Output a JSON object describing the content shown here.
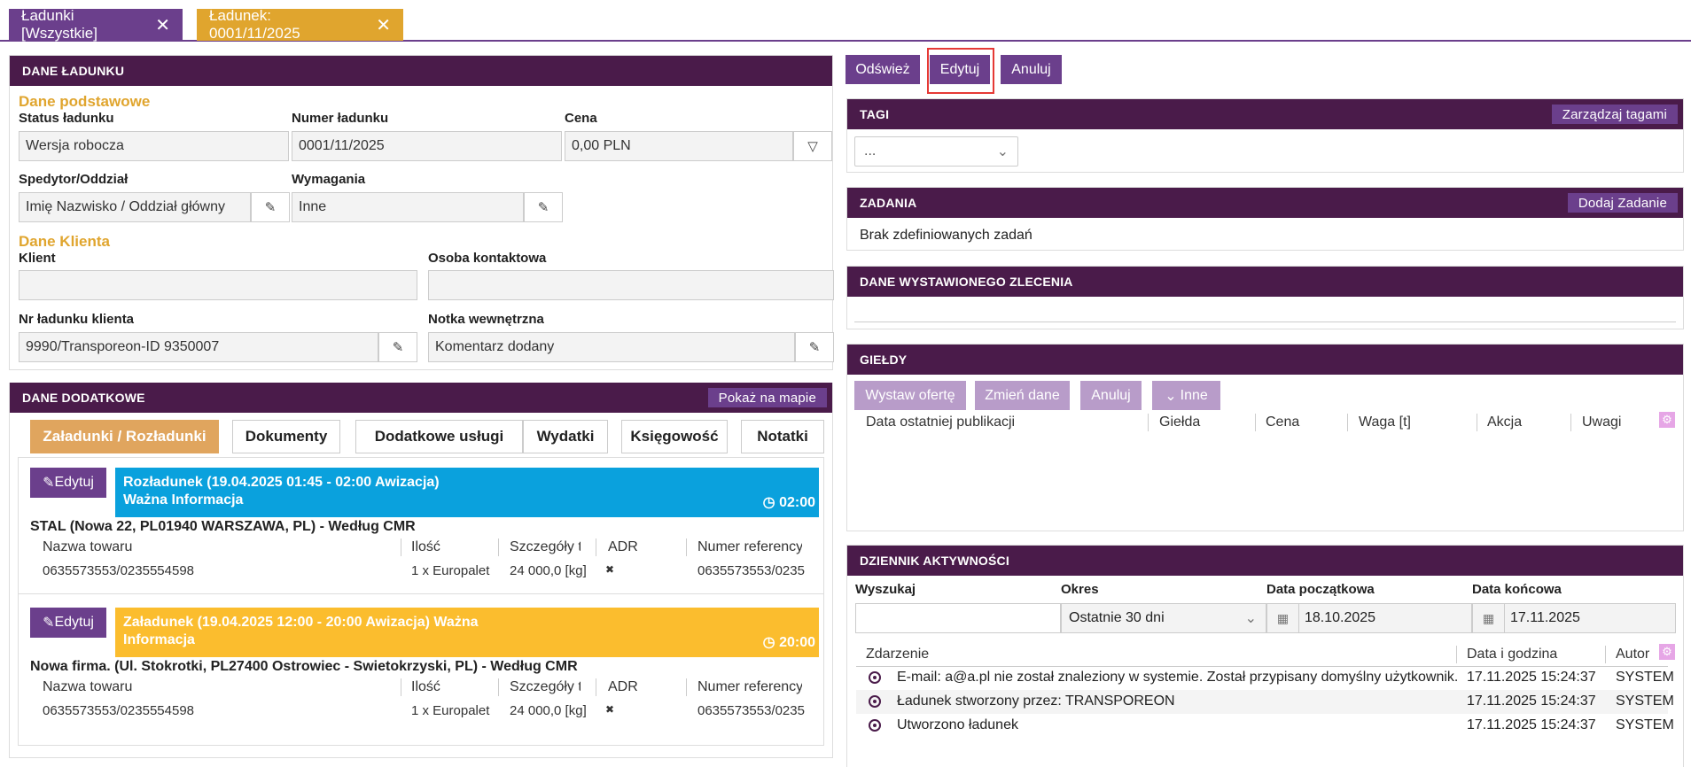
{
  "tabs": [
    {
      "label": "Ładunki [Wszystkie]",
      "close": "✕"
    },
    {
      "label": "Ładunek: 0001/11/2025",
      "close": "✕"
    }
  ],
  "dane_ladunku": {
    "title": "DANE ŁADUNKU",
    "section_basic": "Dane podstawowe",
    "status_label": "Status ładunku",
    "status_value": "Wersja robocza",
    "numer_label": "Numer ładunku",
    "numer_value": "0001/11/2025",
    "cena_label": "Cena",
    "cena_value": "0,00 PLN",
    "spedytor_label": "Spedytor/Oddział",
    "spedytor_value": "Imię Nazwisko / Oddział główny",
    "wymagania_label": "Wymagania",
    "wymagania_value": "Inne",
    "section_client": "Dane Klienta",
    "klient_label": "Klient",
    "klient_value": "",
    "osoba_label": "Osoba kontaktowa",
    "osoba_value": "",
    "nr_klienta_label": "Nr ładunku klienta",
    "nr_klienta_value": "9990/Transporeon-ID 9350007",
    "notka_label": "Notka wewnętrzna",
    "notka_value": "Komentarz dodany"
  },
  "dane_dodatkowe": {
    "title": "DANE DODATKOWE",
    "map_button": "Pokaż na mapie",
    "subtabs": [
      "Załadunki / Rozładunki",
      "Dokumenty",
      "Dodatkowe usługi",
      "Wydatki",
      "Księgowość",
      "Notatki"
    ],
    "stops": [
      {
        "edit": "Edytuj",
        "band_line1": "Rozładunek (19.04.2025 01:45 - 02:00 Awizacja)",
        "band_line2": "Ważna Informacja",
        "time": "◷ 02:00",
        "address": "STAL (Nowa 22, PL01940 WARSZAWA, PL) - Według CMR",
        "headers": [
          "Nazwa towaru",
          "Ilość",
          "Szczegóły tov",
          "ADR",
          "Numer referency"
        ],
        "values": [
          "0635573553/0235554598",
          "1 x Europalet",
          "24 000,0 [kg]",
          "✖",
          "0635573553/0235"
        ]
      },
      {
        "edit": "Edytuj",
        "band_line1": "Załadunek (19.04.2025 12:00 - 20:00 Awizacja) Ważna",
        "band_line2": "Informacja",
        "time": "◷ 20:00",
        "address": "Nowa firma. (Ul. Stokrotki, PL27400 Ostrowiec - Swietokrzyski, PL) - Według CMR",
        "headers": [
          "Nazwa towaru",
          "Ilość",
          "Szczegóły tov",
          "ADR",
          "Numer referency"
        ],
        "values": [
          "0635573553/0235554598",
          "1 x Europalet",
          "24 000,0 [kg]",
          "✖",
          "0635573553/0235"
        ]
      }
    ]
  },
  "actions": {
    "refresh": "Odśwież",
    "edit": "Edytuj",
    "cancel": "Anuluj"
  },
  "tagi": {
    "title": "TAGI",
    "button": "Zarządzaj tagami",
    "select_value": "..."
  },
  "zadania": {
    "title": "ZADANIA",
    "button": "Dodaj Zadanie",
    "empty": "Brak zdefiniowanych zadań"
  },
  "zlecenie": {
    "title": "DANE WYSTAWIONEGO ZLECENIA"
  },
  "gieldy": {
    "title": "GIEŁDY",
    "buttons": [
      "Wystaw ofertę",
      "Zmień dane",
      "Anuluj",
      "Inne"
    ],
    "columns": [
      "Data ostatniej publikacji",
      "Giełda",
      "Cena",
      "Waga [t]",
      "Akcja",
      "Uwagi"
    ]
  },
  "dziennik": {
    "title": "DZIENNIK AKTYWNOŚCI",
    "search_label": "Wyszukaj",
    "search_value": "",
    "okres_label": "Okres",
    "okres_value": "Ostatnie 30 dni",
    "start_label": "Data początkowa",
    "start_value": "18.10.2025",
    "end_label": "Data końcowa",
    "end_value": "17.11.2025",
    "columns": [
      "Zdarzenie",
      "Data i godzina",
      "Autor"
    ],
    "rows": [
      {
        "event": "E-mail: a@a.pl nie został znaleziony w systemie. Został przypisany domyślny użytkownik.",
        "date": "17.11.2025 15:24:37",
        "author": "SYSTEM"
      },
      {
        "event": "Ładunek stworzony przez: TRANSPOREON",
        "date": "17.11.2025 15:24:37",
        "author": "SYSTEM"
      },
      {
        "event": "Utworzono ładunek",
        "date": "17.11.2025 15:24:37",
        "author": "SYSTEM"
      }
    ]
  },
  "colors": {
    "purple": "#6b3f8c",
    "dark_purple": "#4a1b4a",
    "gold": "#e0a52e",
    "blue": "#0aa1dd",
    "yellow": "#fbbd2e",
    "highlight": "#e53935"
  }
}
